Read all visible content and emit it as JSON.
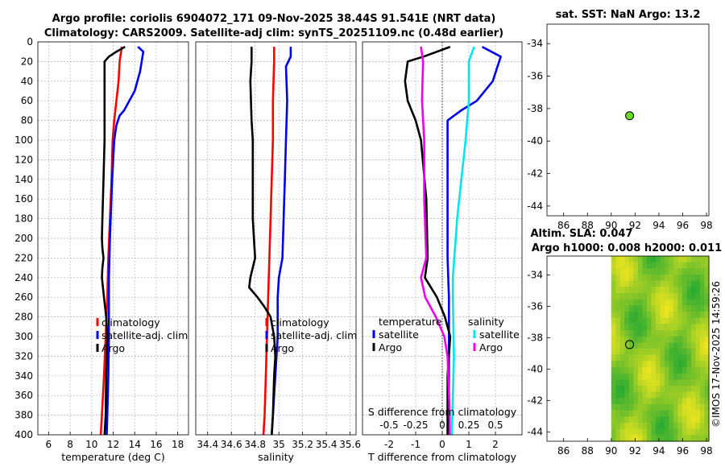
{
  "figure": {
    "title_line1": "Argo profile: coriolis 6904072_171 09-Nov-2025 38.44S 91.541E (NRT data)",
    "title_line2": "Climatology: CARS2009. Satellite-adj clim: synTS_20251109.nc (0.48d earlier)",
    "watermark": "©IMOS 17-Nov-2025 14:59:26"
  },
  "colors": {
    "climatology": "#ff0000",
    "satellite": "#0000ee",
    "argo": "#000000",
    "salinity_satellite": "#00e5ee",
    "salinity_argo": "#ee00ee",
    "grid": "#b0b0c8",
    "marker": "#66dd22"
  },
  "chart_data": [
    {
      "type": "line",
      "id": "temperature",
      "xlabel": "temperature (deg C)",
      "xlim": [
        5,
        19
      ],
      "ylim": [
        0,
        400
      ],
      "xticks": [
        6,
        8,
        10,
        12,
        14,
        16,
        18
      ],
      "yticks": [
        0,
        20,
        40,
        60,
        80,
        100,
        120,
        140,
        160,
        180,
        200,
        220,
        240,
        260,
        280,
        300,
        320,
        340,
        360,
        380,
        400
      ],
      "legend": [
        "climatology",
        "satellite-adj. clim",
        "Argo"
      ],
      "series": [
        {
          "name": "climatology",
          "color": "#ff0000",
          "points": [
            [
              12.8,
              5
            ],
            [
              12.6,
              20
            ],
            [
              12.5,
              40
            ],
            [
              12.3,
              60
            ],
            [
              12.1,
              80
            ],
            [
              11.95,
              100
            ],
            [
              11.85,
              140
            ],
            [
              11.7,
              180
            ],
            [
              11.55,
              220
            ],
            [
              11.45,
              260
            ],
            [
              11.3,
              300
            ],
            [
              11.15,
              340
            ],
            [
              10.95,
              380
            ],
            [
              10.85,
              400
            ]
          ]
        },
        {
          "name": "satellite-adj. clim",
          "color": "#0000ee",
          "points": [
            [
              14.3,
              5
            ],
            [
              14.8,
              10
            ],
            [
              14.5,
              30
            ],
            [
              14.0,
              50
            ],
            [
              13.5,
              60
            ],
            [
              13.0,
              70
            ],
            [
              12.6,
              75
            ],
            [
              12.3,
              85
            ],
            [
              12.1,
              100
            ],
            [
              11.9,
              140
            ],
            [
              11.7,
              200
            ],
            [
              11.6,
              240
            ],
            [
              11.6,
              260
            ],
            [
              11.6,
              300
            ],
            [
              11.55,
              340
            ],
            [
              11.45,
              380
            ],
            [
              11.4,
              400
            ]
          ]
        },
        {
          "name": "Argo",
          "color": "#000000",
          "points": [
            [
              13.1,
              5
            ],
            [
              12.3,
              10
            ],
            [
              11.6,
              15
            ],
            [
              11.2,
              20
            ],
            [
              11.2,
              60
            ],
            [
              11.2,
              100
            ],
            [
              11.1,
              140
            ],
            [
              11.0,
              180
            ],
            [
              10.95,
              200
            ],
            [
              11.0,
              210
            ],
            [
              11.1,
              220
            ],
            [
              11.0,
              230
            ],
            [
              10.95,
              240
            ],
            [
              11.15,
              260
            ],
            [
              11.35,
              280
            ],
            [
              11.45,
              300
            ],
            [
              11.35,
              340
            ],
            [
              11.3,
              380
            ],
            [
              11.2,
              400
            ]
          ]
        }
      ]
    },
    {
      "type": "line",
      "id": "salinity",
      "xlabel": "salinity",
      "xlim": [
        34.3,
        35.65
      ],
      "ylim": [
        0,
        400
      ],
      "xticks": [
        34.4,
        34.6,
        34.8,
        35,
        35.2,
        35.4,
        35.6
      ],
      "legend": [
        "climatology",
        "satellite-adj. clim",
        "Argo"
      ],
      "series": [
        {
          "name": "climatology",
          "color": "#ff0000",
          "points": [
            [
              34.96,
              5
            ],
            [
              34.96,
              20
            ],
            [
              34.95,
              60
            ],
            [
              34.95,
              100
            ],
            [
              34.94,
              140
            ],
            [
              34.93,
              180
            ],
            [
              34.92,
              220
            ],
            [
              34.91,
              260
            ],
            [
              34.9,
              300
            ],
            [
              34.89,
              340
            ],
            [
              34.88,
              380
            ],
            [
              34.87,
              400
            ]
          ]
        },
        {
          "name": "satellite-adj. clim",
          "color": "#0000ee",
          "points": [
            [
              35.1,
              5
            ],
            [
              35.1,
              15
            ],
            [
              35.06,
              25
            ],
            [
              35.07,
              60
            ],
            [
              35.06,
              100
            ],
            [
              35.05,
              140
            ],
            [
              35.04,
              180
            ],
            [
              35.03,
              220
            ],
            [
              35.0,
              240
            ],
            [
              34.99,
              260
            ],
            [
              34.99,
              300
            ],
            [
              34.97,
              340
            ],
            [
              34.95,
              380
            ],
            [
              34.94,
              400
            ]
          ]
        },
        {
          "name": "Argo",
          "color": "#000000",
          "points": [
            [
              34.77,
              5
            ],
            [
              34.77,
              20
            ],
            [
              34.76,
              40
            ],
            [
              34.77,
              80
            ],
            [
              34.78,
              100
            ],
            [
              34.78,
              140
            ],
            [
              34.78,
              180
            ],
            [
              34.79,
              200
            ],
            [
              34.8,
              220
            ],
            [
              34.76,
              240
            ],
            [
              34.75,
              250
            ],
            [
              34.82,
              260
            ],
            [
              34.88,
              270
            ],
            [
              34.93,
              280
            ],
            [
              34.96,
              300
            ],
            [
              34.97,
              320
            ],
            [
              34.96,
              340
            ],
            [
              34.95,
              380
            ],
            [
              34.94,
              400
            ]
          ]
        }
      ]
    },
    {
      "type": "line",
      "id": "difference",
      "xlabel": "T difference from climatology",
      "xlabel2": "S difference from climatology",
      "xlim": [
        -3,
        3
      ],
      "ylim": [
        0,
        400
      ],
      "xticks": [
        -2,
        -1,
        0,
        1,
        2
      ],
      "xticks2_labels": [
        "-0.5",
        "-0.25",
        "0",
        "0.25",
        "0.5"
      ],
      "legend_title_left": "temperature",
      "legend_title_right": "salinity",
      "legend_left": [
        "satellite",
        "Argo"
      ],
      "legend_right": [
        "satellite",
        "Argo"
      ],
      "series": [
        {
          "name": "T satellite",
          "color": "#0000ee",
          "points": [
            [
              1.5,
              5
            ],
            [
              2.2,
              15
            ],
            [
              1.9,
              40
            ],
            [
              1.3,
              60
            ],
            [
              0.7,
              70
            ],
            [
              0.2,
              80
            ],
            [
              0.2,
              100
            ],
            [
              0.2,
              160
            ],
            [
              0.2,
              220
            ],
            [
              0.25,
              260
            ],
            [
              0.25,
              300
            ],
            [
              0.25,
              400
            ]
          ]
        },
        {
          "name": "T Argo",
          "color": "#000000",
          "points": [
            [
              0.3,
              5
            ],
            [
              -0.7,
              15
            ],
            [
              -1.3,
              20
            ],
            [
              -1.4,
              40
            ],
            [
              -1.3,
              60
            ],
            [
              -1.0,
              80
            ],
            [
              -0.8,
              100
            ],
            [
              -0.6,
              160
            ],
            [
              -0.55,
              220
            ],
            [
              -0.65,
              240
            ],
            [
              -0.2,
              260
            ],
            [
              0.1,
              280
            ],
            [
              0.3,
              300
            ],
            [
              0.2,
              340
            ],
            [
              0.2,
              400
            ]
          ]
        },
        {
          "name": "S satellite",
          "color": "#00e5ee",
          "points": [
            [
              0.3,
              5
            ],
            [
              0.25,
              20
            ],
            [
              0.25,
              60
            ],
            [
              0.22,
              100
            ],
            [
              0.14,
              180
            ],
            [
              0.1,
              240
            ],
            [
              0.1,
              260
            ],
            [
              0.11,
              320
            ],
            [
              0.1,
              360
            ],
            [
              0.09,
              400
            ]
          ]
        },
        {
          "name": "S Argo",
          "color": "#ee00ee",
          "points": [
            [
              -0.2,
              5
            ],
            [
              -0.18,
              20
            ],
            [
              -0.19,
              60
            ],
            [
              -0.17,
              100
            ],
            [
              -0.17,
              160
            ],
            [
              -0.15,
              220
            ],
            [
              -0.2,
              240
            ],
            [
              -0.16,
              260
            ],
            [
              -0.06,
              280
            ],
            [
              0.02,
              300
            ],
            [
              0.05,
              320
            ],
            [
              0.07,
              380
            ],
            [
              0.07,
              400
            ]
          ]
        }
      ]
    },
    {
      "type": "scatter",
      "id": "sst_map",
      "title": "sat. SST: NaN Argo: 13.2",
      "xlim": [
        84.6,
        98.2
      ],
      "ylim": [
        -44.6,
        -32.8
      ],
      "xticks": [
        86,
        88,
        90,
        92,
        94,
        96,
        98
      ],
      "yticks": [
        -34,
        -36,
        -38,
        -40,
        -42,
        -44
      ],
      "points": [
        {
          "lon": 91.54,
          "lat": -38.44
        }
      ]
    },
    {
      "type": "heatmap",
      "id": "sla_map",
      "title_line1": "Altim. SLA: 0.047",
      "title_line2": "Argo h1000: 0.008 h2000: 0.011",
      "xlim": [
        84.6,
        98.2
      ],
      "ylim": [
        -44.6,
        -32.8
      ],
      "xticks": [
        86,
        88,
        90,
        92,
        94,
        96,
        98
      ],
      "yticks": [
        -34,
        -36,
        -38,
        -40,
        -42,
        -44
      ],
      "data_lon_range": [
        90,
        98
      ],
      "points": [
        {
          "lon": 91.54,
          "lat": -38.44
        }
      ]
    }
  ]
}
